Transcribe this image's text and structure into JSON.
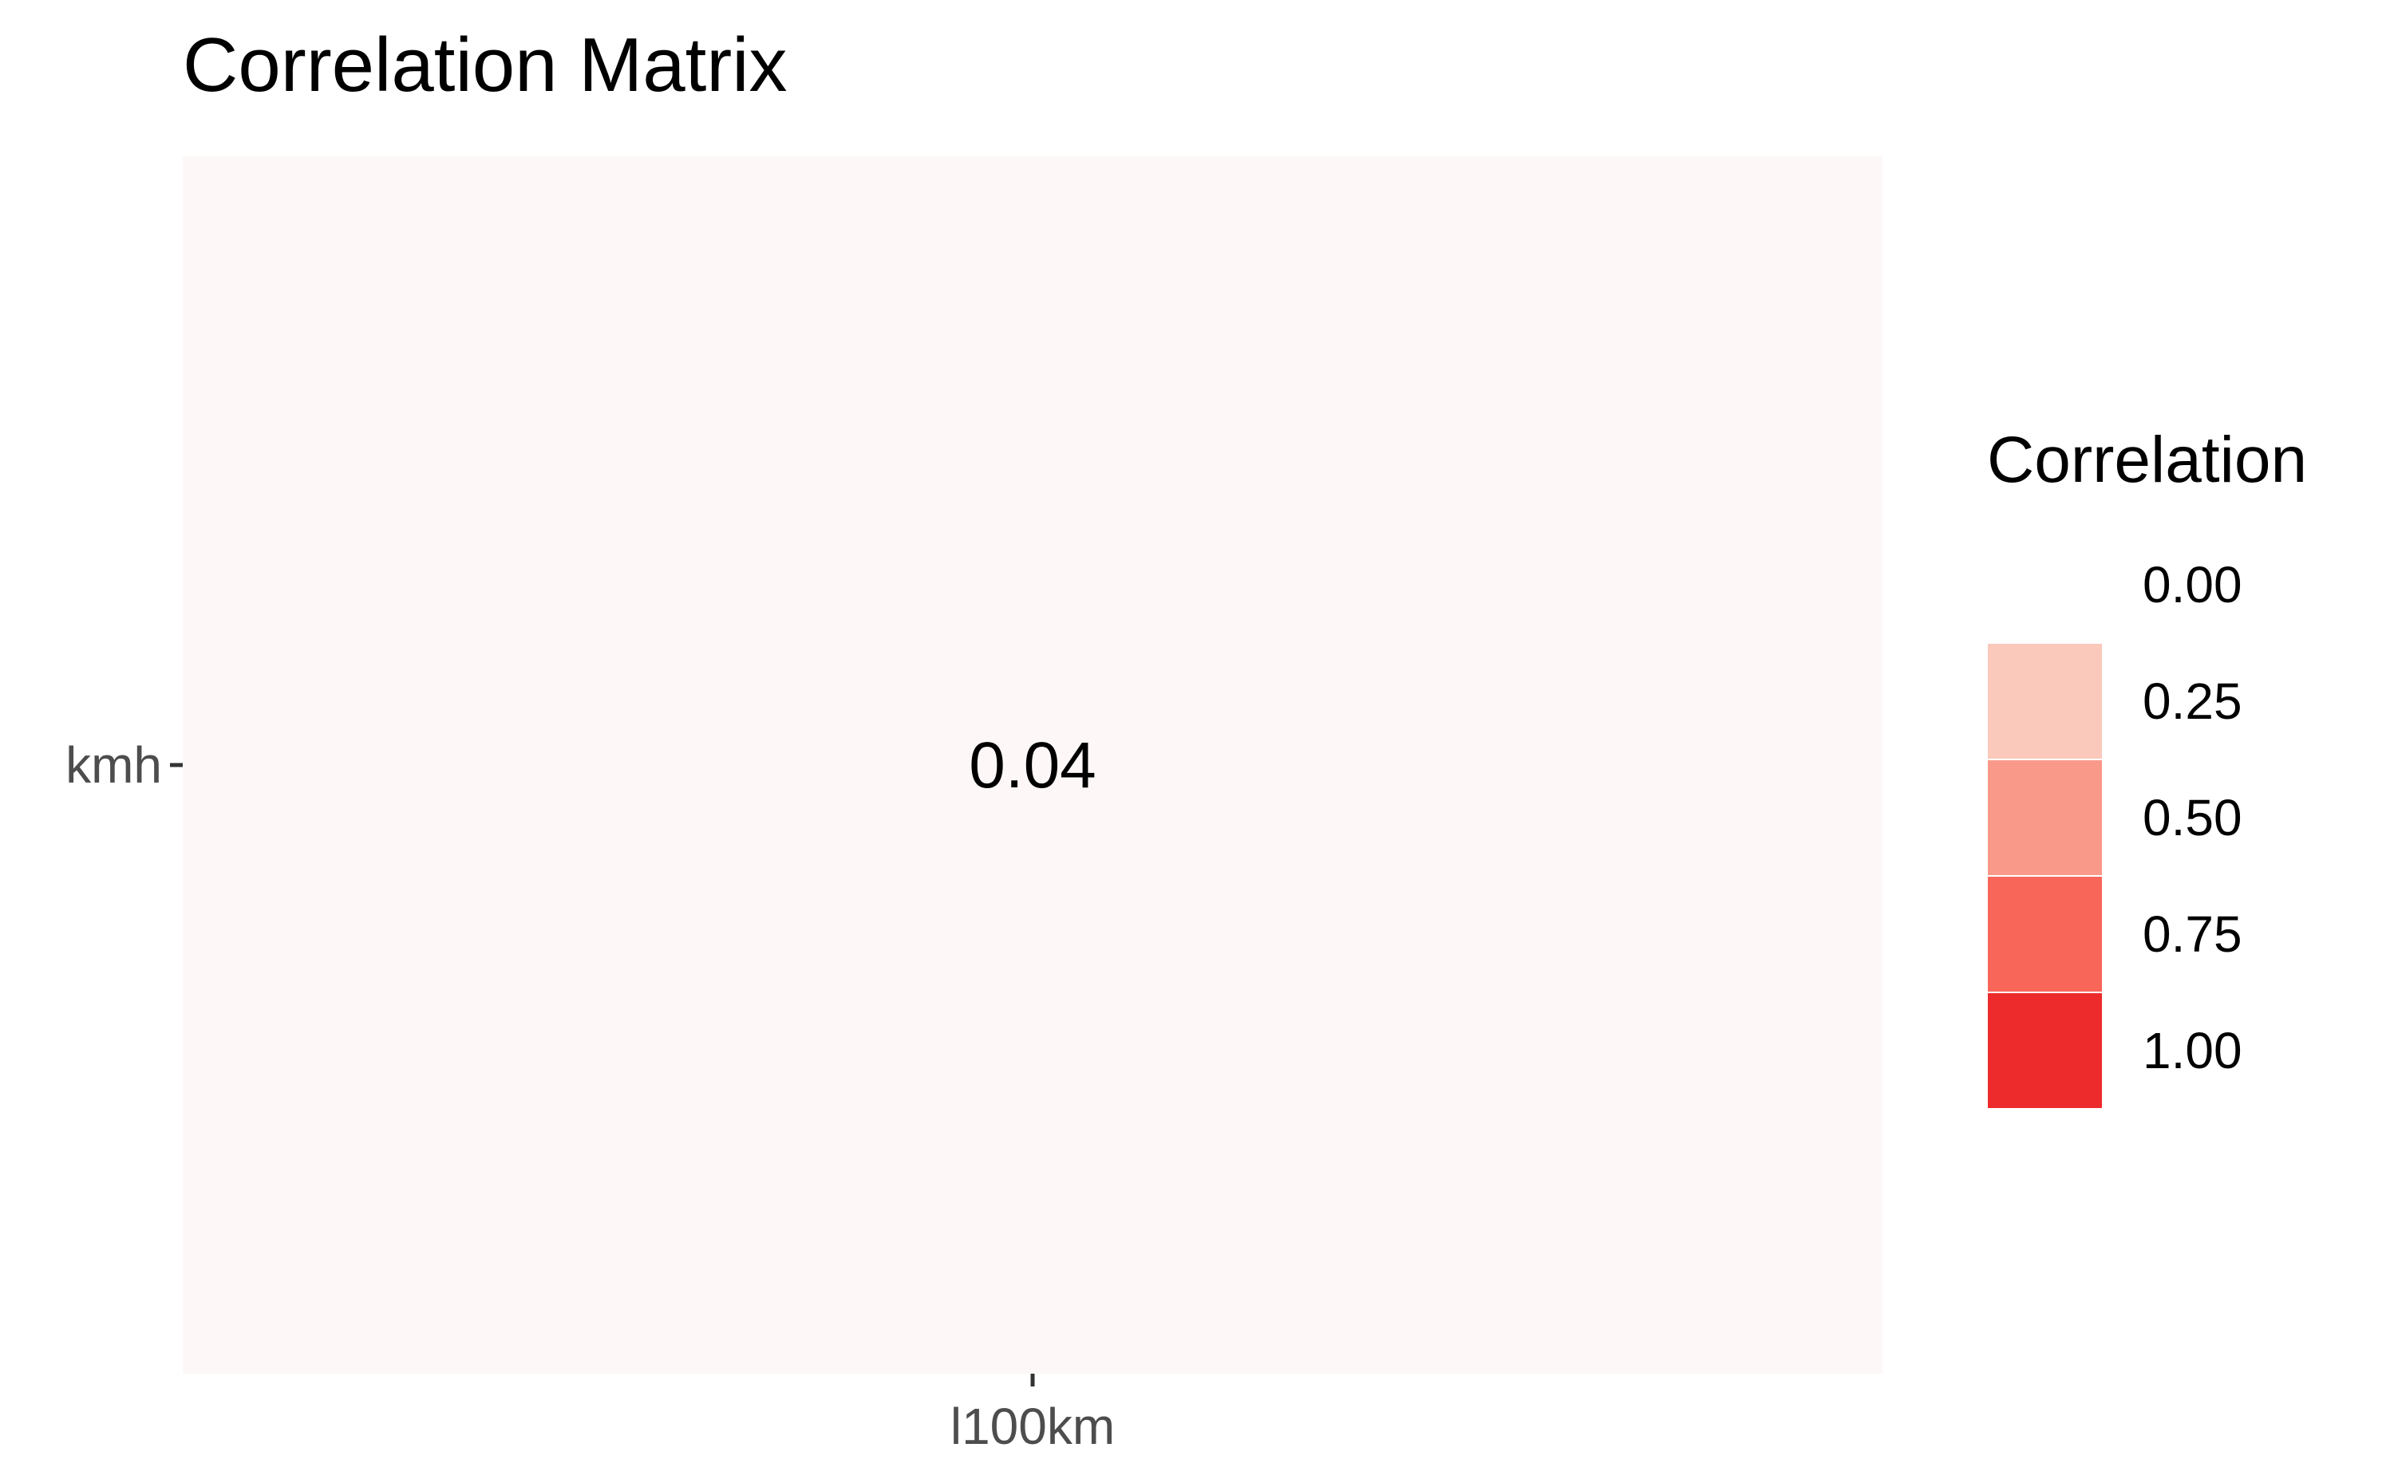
{
  "chart_data": {
    "type": "heatmap",
    "title": "Correlation Matrix",
    "x_categories": [
      "l100km"
    ],
    "y_categories": [
      "kmh"
    ],
    "cells": [
      {
        "x": "l100km",
        "y": "kmh",
        "value": 0.04,
        "label": "0.04"
      }
    ],
    "legend": {
      "title": "Correlation",
      "position": "right",
      "breaks": [
        {
          "label": "0.00",
          "value": 0.0,
          "color": "#ffffff"
        },
        {
          "label": "0.25",
          "value": 0.25,
          "color": "#fbc9bb"
        },
        {
          "label": "0.50",
          "value": 0.5,
          "color": "#f9998a"
        },
        {
          "label": "0.75",
          "value": 0.75,
          "color": "#f8665a"
        },
        {
          "label": "1.00",
          "value": 1.0,
          "color": "#ee2b2c"
        }
      ]
    },
    "colors": {
      "low": "#ffffff",
      "high": "#ee2b2c"
    },
    "grid": false
  }
}
